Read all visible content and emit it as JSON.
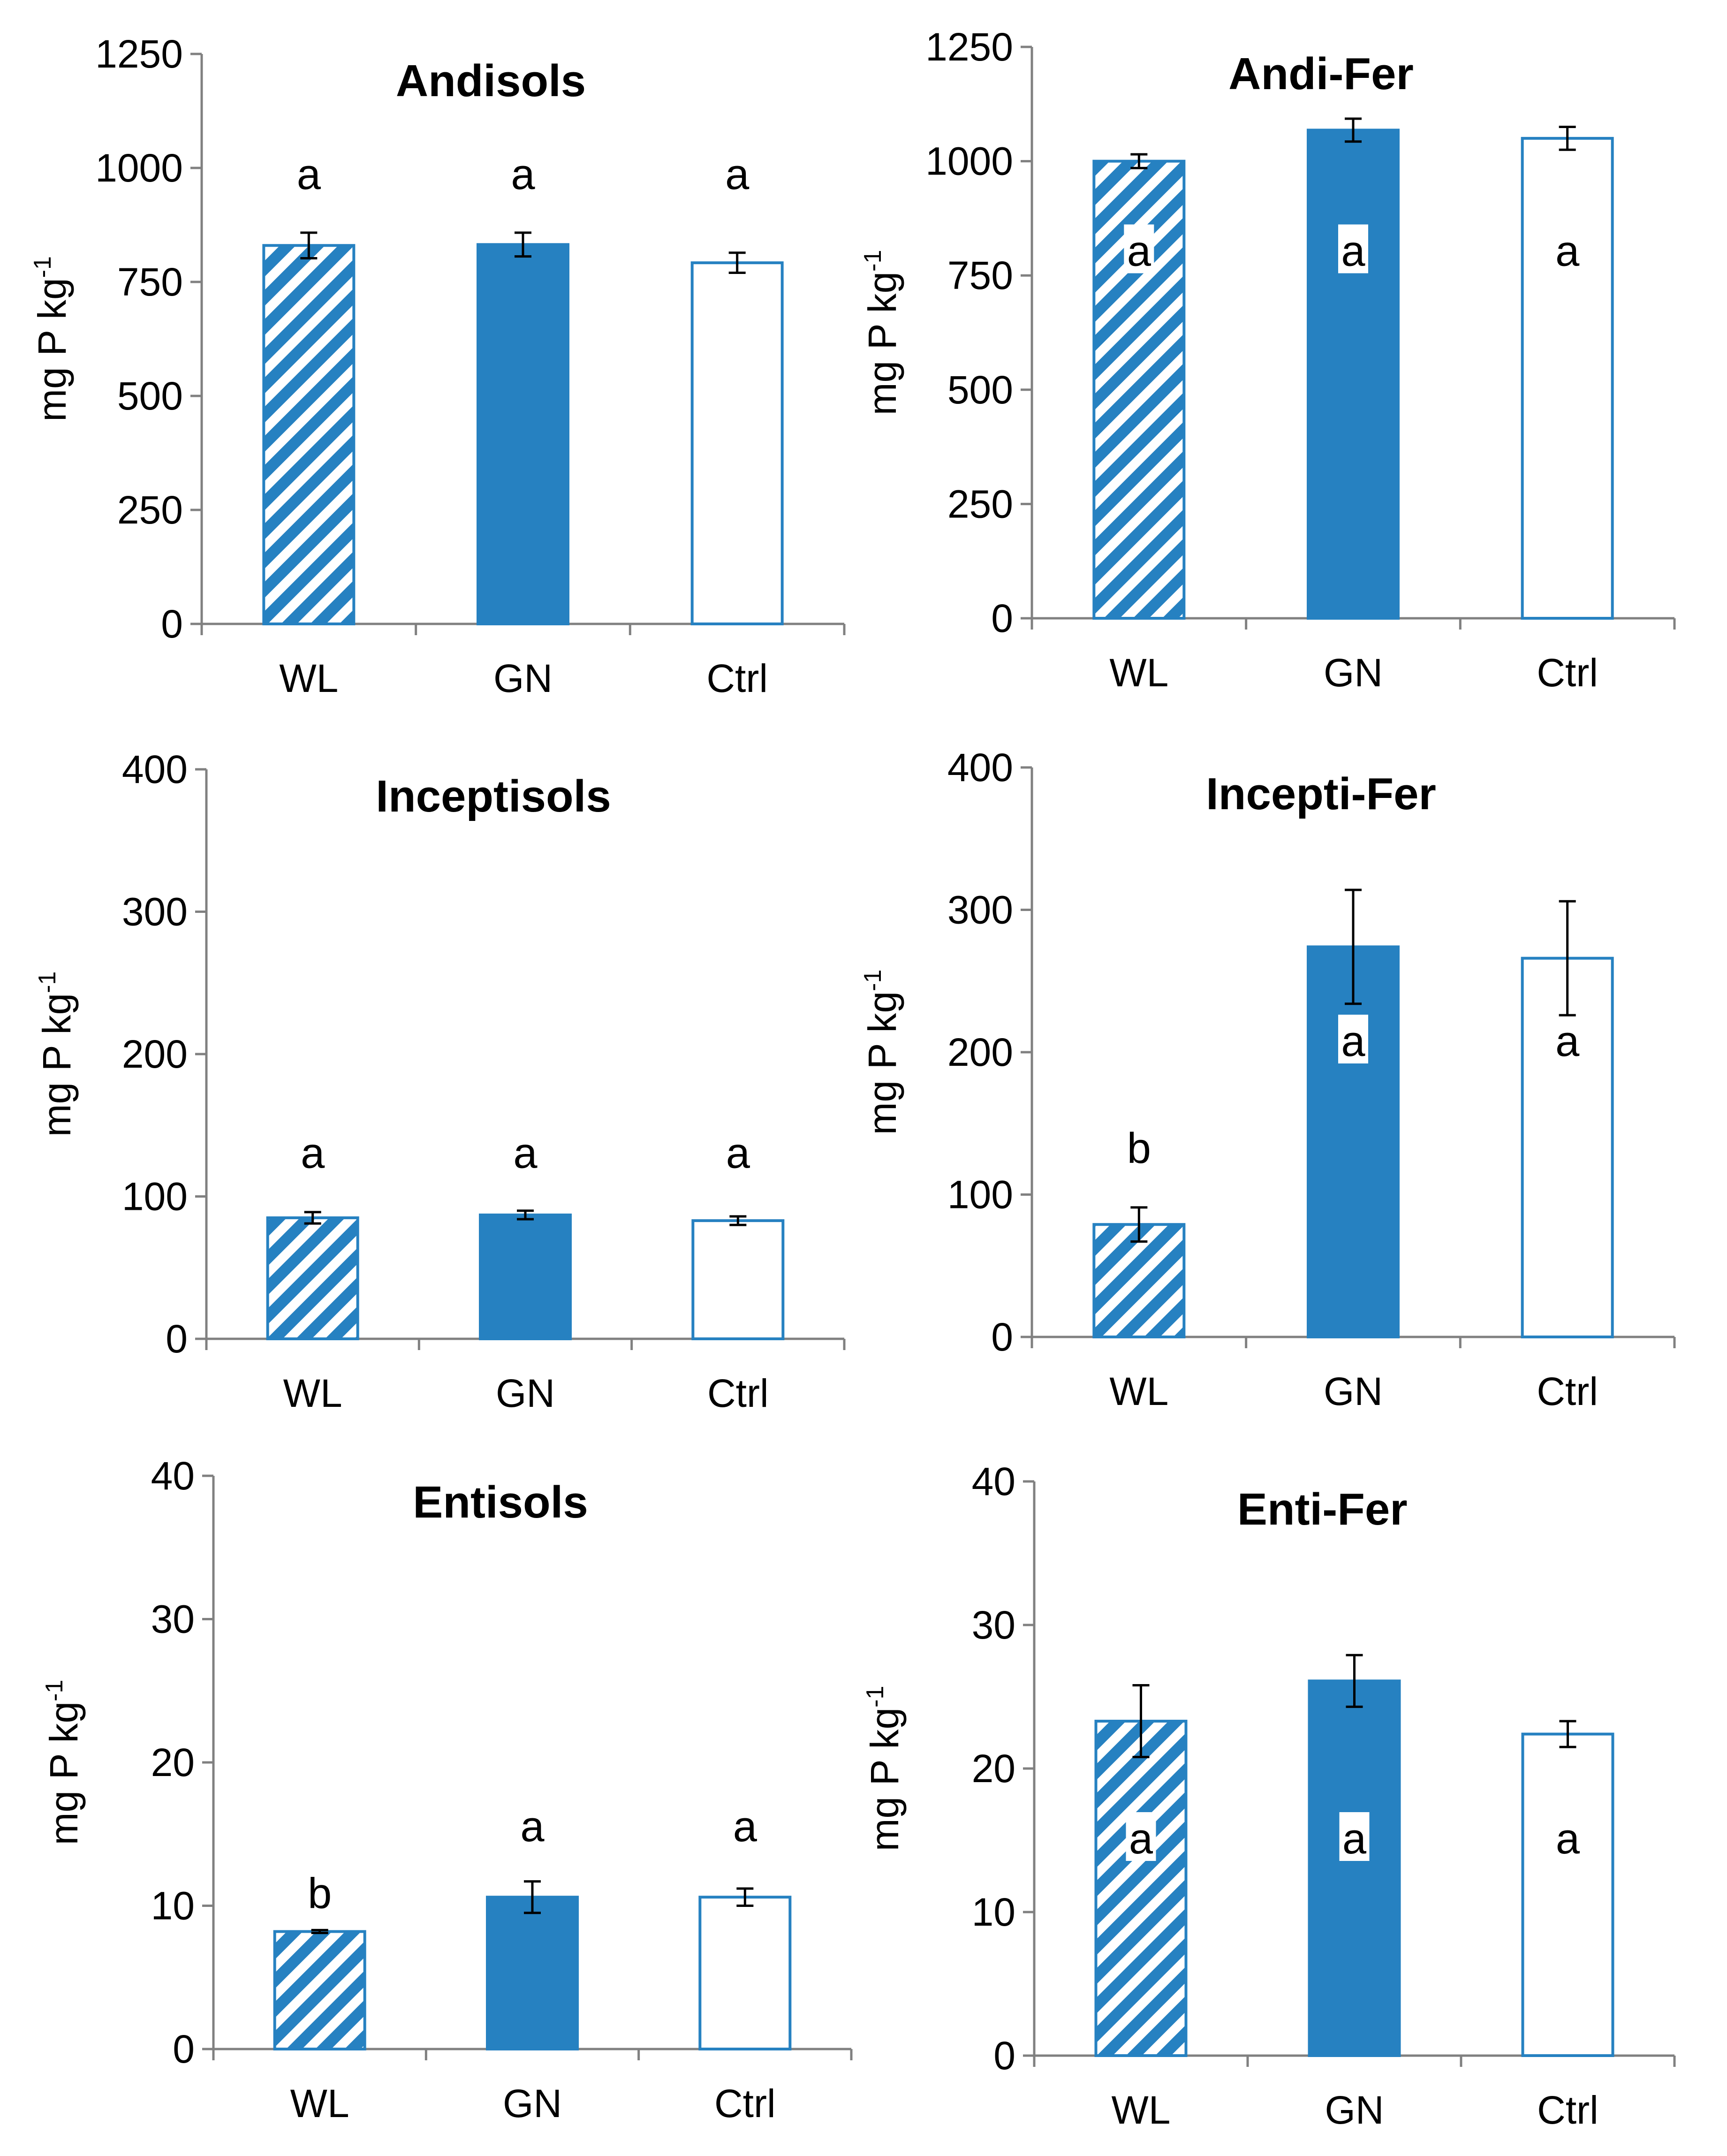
{
  "colors": {
    "bar": "#2681C1",
    "axis": "#808080",
    "errbar": "#000000",
    "background": "#FFFFFF"
  },
  "chart_data": [
    {
      "id": "andisols",
      "type": "bar",
      "title": "Andisols",
      "ylabel": "mg P kg",
      "ylabel_sup": "-1",
      "categories": [
        "WL",
        "GN",
        "Ctrl"
      ],
      "styles": [
        "hatched",
        "solid",
        "outline"
      ],
      "values": [
        830,
        832,
        792
      ],
      "errors": [
        28,
        26,
        22
      ],
      "letters": [
        "a",
        "a",
        "a"
      ],
      "letter_position": "above",
      "ylim": [
        0,
        1250
      ],
      "ticks": [
        0,
        250,
        500,
        750,
        1000,
        1250
      ]
    },
    {
      "id": "andi-fer",
      "type": "bar",
      "title": "Andi-Fer",
      "ylabel": "mg P kg",
      "ylabel_sup": "-1",
      "categories": [
        "WL",
        "GN",
        "Ctrl"
      ],
      "styles": [
        "hatched",
        "solid",
        "outline"
      ],
      "values": [
        1000,
        1068,
        1050
      ],
      "errors": [
        15,
        25,
        25
      ],
      "letters": [
        "a",
        "a",
        "a"
      ],
      "letter_position": "inside",
      "ylim": [
        0,
        1250
      ],
      "ticks": [
        0,
        250,
        500,
        750,
        1000,
        1250
      ]
    },
    {
      "id": "inceptisols",
      "type": "bar",
      "title": "Inceptisols",
      "ylabel": "mg P kg",
      "ylabel_sup": "-1",
      "categories": [
        "WL",
        "GN",
        "Ctrl"
      ],
      "styles": [
        "hatched",
        "solid",
        "outline"
      ],
      "values": [
        85,
        87,
        83
      ],
      "errors": [
        4,
        3,
        3
      ],
      "letters": [
        "a",
        "a",
        "a"
      ],
      "letter_position": "above",
      "ylim": [
        0,
        400
      ],
      "ticks": [
        0,
        100,
        200,
        300,
        400
      ]
    },
    {
      "id": "incepti-fer",
      "type": "bar",
      "title": "Incepti-Fer",
      "ylabel": "mg P kg",
      "ylabel_sup": "-1",
      "categories": [
        "WL",
        "GN",
        "Ctrl"
      ],
      "styles": [
        "hatched",
        "solid",
        "outline"
      ],
      "values": [
        79,
        274,
        266
      ],
      "errors": [
        12,
        40,
        40
      ],
      "letters": [
        "b",
        "a",
        "a"
      ],
      "letter_position": "mixed",
      "ylim": [
        0,
        400
      ],
      "ticks": [
        0,
        100,
        200,
        300,
        400
      ]
    },
    {
      "id": "entisols",
      "type": "bar",
      "title": "Entisols",
      "ylabel": "mg P kg",
      "ylabel_sup": "-1",
      "categories": [
        "WL",
        "GN",
        "Ctrl"
      ],
      "styles": [
        "hatched",
        "solid",
        "outline"
      ],
      "values": [
        8.2,
        10.6,
        10.6
      ],
      "errors": [
        0.1,
        1.1,
        0.6
      ],
      "letters": [
        "b",
        "a",
        "a"
      ],
      "letter_position": "above",
      "ylim": [
        0,
        40
      ],
      "ticks": [
        0,
        10,
        20,
        30,
        40
      ]
    },
    {
      "id": "enti-fer",
      "type": "bar",
      "title": "Enti-Fer",
      "ylabel": "mg P kg",
      "ylabel_sup": "-1",
      "categories": [
        "WL",
        "GN",
        "Ctrl"
      ],
      "styles": [
        "hatched",
        "solid",
        "outline"
      ],
      "values": [
        23.3,
        26.1,
        22.4
      ],
      "errors": [
        2.5,
        1.8,
        0.9
      ],
      "letters": [
        "a",
        "a",
        "a"
      ],
      "letter_position": "inside",
      "ylim": [
        0,
        40
      ],
      "ticks": [
        0,
        10,
        20,
        30,
        40
      ]
    }
  ]
}
